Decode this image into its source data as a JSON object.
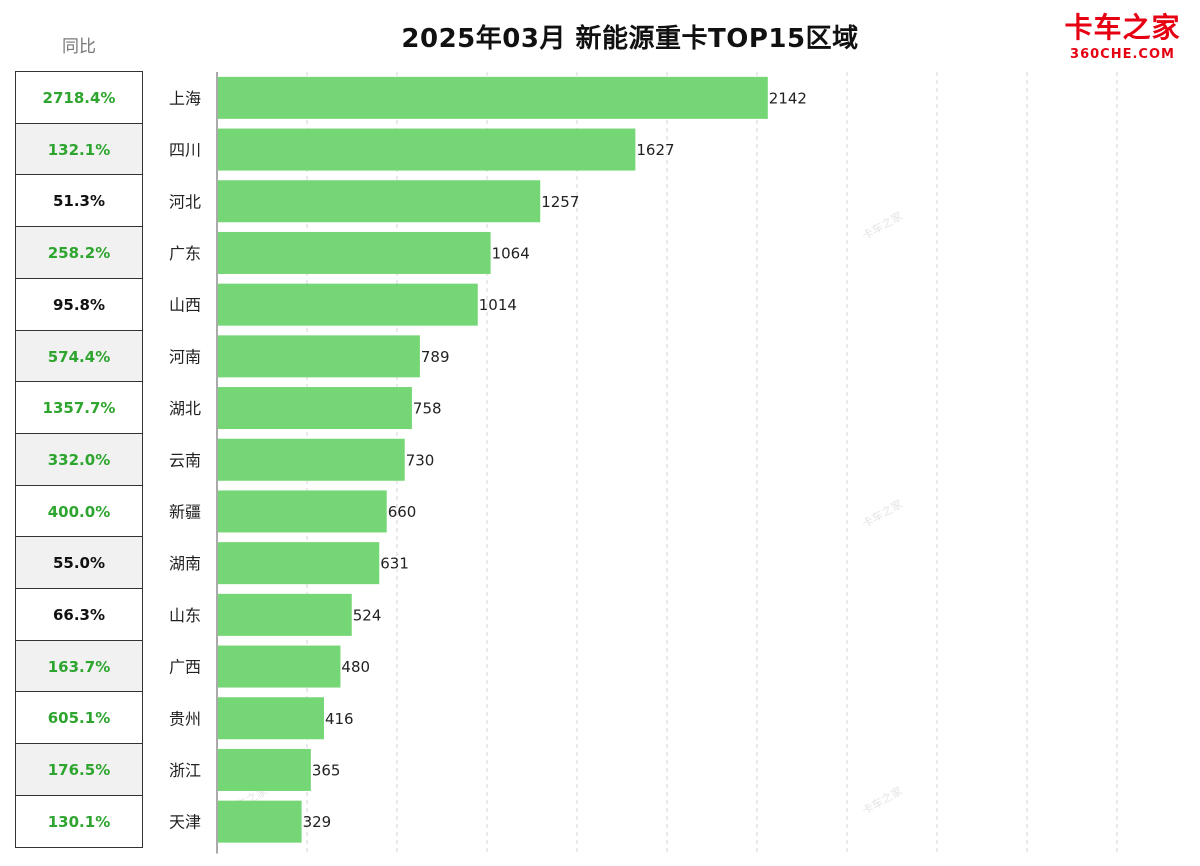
{
  "header": {
    "title": "2025年03月 新能源重卡TOP15区域",
    "yoy_label": "同比"
  },
  "logo": {
    "main": "卡车之家",
    "sub": "360CHE.COM",
    "color": "#e60012"
  },
  "colors": {
    "bar": "#74d674",
    "yoy_positive": "#2ea52e",
    "yoy_neutral": "#111111",
    "cell_alt_bg": "#f1f1f1",
    "grid": "#d6d6d6"
  },
  "yoy": [
    {
      "value": "2718.4%",
      "tone": "green"
    },
    {
      "value": "132.1%",
      "tone": "green"
    },
    {
      "value": "51.3%",
      "tone": "black"
    },
    {
      "value": "258.2%",
      "tone": "green"
    },
    {
      "value": "95.8%",
      "tone": "black"
    },
    {
      "value": "574.4%",
      "tone": "green"
    },
    {
      "value": "1357.7%",
      "tone": "green"
    },
    {
      "value": "332.0%",
      "tone": "green"
    },
    {
      "value": "400.0%",
      "tone": "green"
    },
    {
      "value": "55.0%",
      "tone": "black"
    },
    {
      "value": "66.3%",
      "tone": "black"
    },
    {
      "value": "163.7%",
      "tone": "green"
    },
    {
      "value": "605.1%",
      "tone": "green"
    },
    {
      "value": "176.5%",
      "tone": "green"
    },
    {
      "value": "130.1%",
      "tone": "green"
    }
  ],
  "chart_data": {
    "type": "bar",
    "orientation": "horizontal",
    "title": "2025年03月 新能源重卡TOP15区域",
    "categories": [
      "上海",
      "四川",
      "河北",
      "广东",
      "山西",
      "河南",
      "湖北",
      "云南",
      "新疆",
      "湖南",
      "山东",
      "广西",
      "贵州",
      "浙江",
      "天津"
    ],
    "values": [
      2142,
      1627,
      1257,
      1064,
      1014,
      789,
      758,
      730,
      660,
      631,
      524,
      480,
      416,
      365,
      329
    ],
    "xlim": [
      0,
      3500
    ],
    "x_gridlines": [
      0,
      350,
      700,
      1050,
      1400,
      1750,
      2100,
      2450,
      2800,
      3150,
      3500
    ],
    "grid": true,
    "legend": "none"
  }
}
